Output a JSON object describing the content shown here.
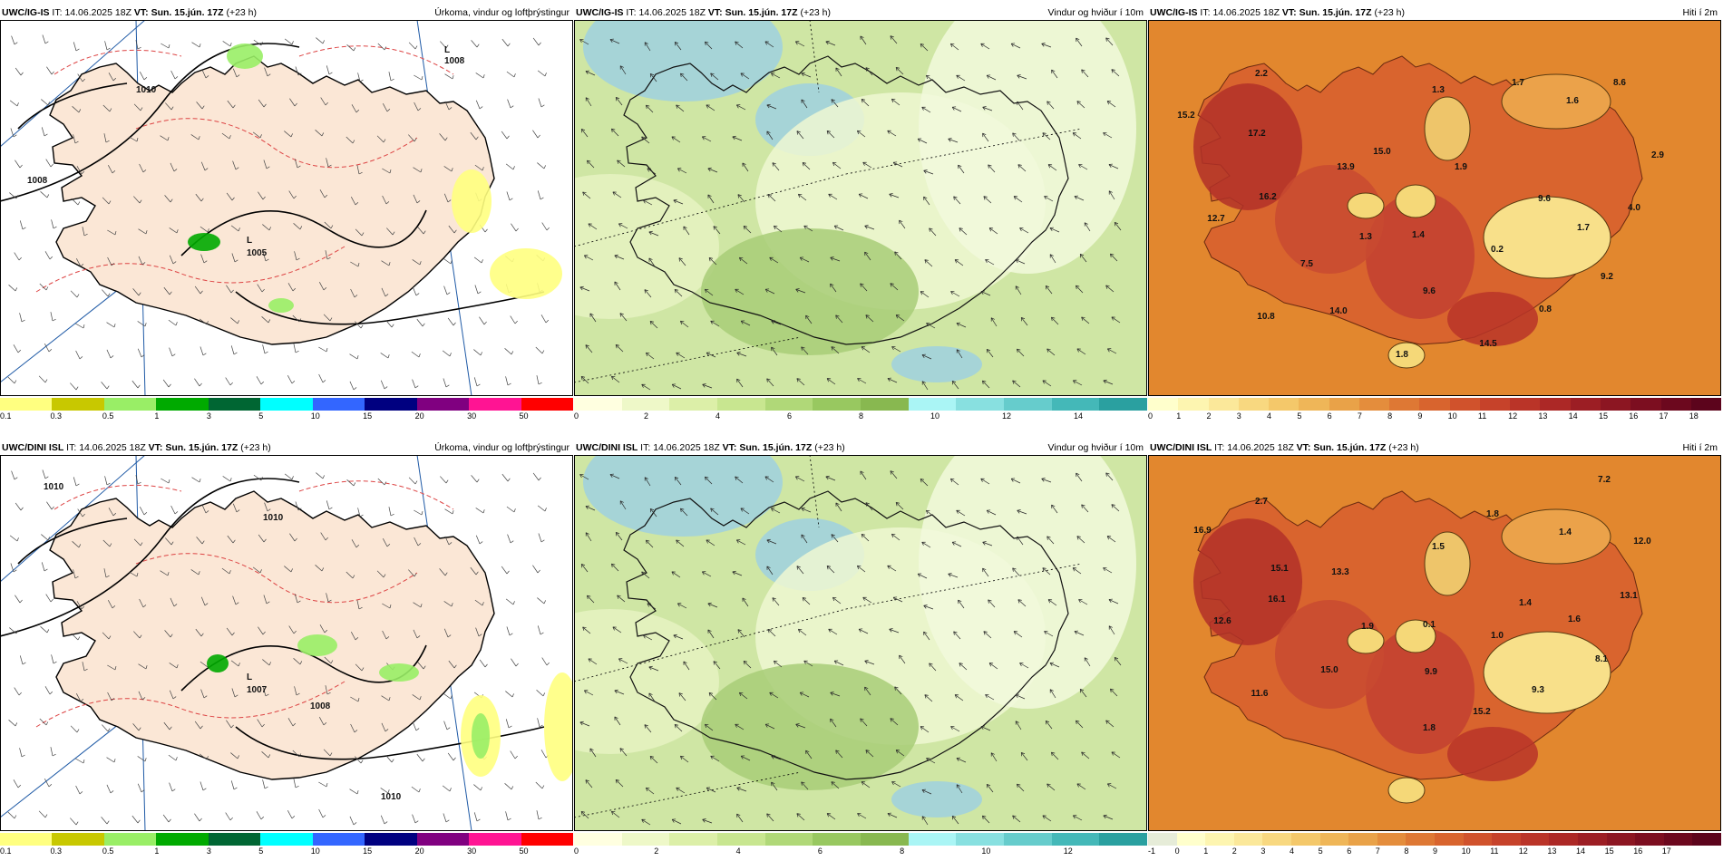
{
  "rows": [
    {
      "model": "UWC/IG-IS",
      "panels": [
        {
          "kind": "precip",
          "model": "UWC/IG-IS",
          "it_label": "IT:",
          "it": "14.06.2025 18Z",
          "vt_label": "VT:",
          "vt": "Sun. 15.jún. 17Z",
          "lead": "(+23 h)",
          "title": "Úrkoma, vindur og loftþrýstingur",
          "isobar_labels": [
            {
              "text": "1008",
              "x": 490,
              "y": 48
            },
            {
              "text": "1005",
              "x": 272,
              "y": 260
            },
            {
              "text": "1010",
              "x": 150,
              "y": 80
            },
            {
              "text": "1008",
              "x": 30,
              "y": 180
            }
          ],
          "low_labels": [
            {
              "text": "L",
              "x": 272,
              "y": 246
            },
            {
              "text": "L",
              "x": 490,
              "y": 36
            }
          ],
          "colorbar": {
            "colors": [
              "#ffff80",
              "#c8c800",
              "#99ee66",
              "#00aa00",
              "#006633",
              "#00ffff",
              "#3366ff",
              "#000080",
              "#800080",
              "#ff1493",
              "#ff0000"
            ],
            "ticks": [
              "0.1",
              "0.3",
              "0.5",
              "1",
              "3",
              "5",
              "10",
              "15",
              "20",
              "30",
              "50"
            ]
          }
        },
        {
          "kind": "wind",
          "model": "UWC/IG-IS",
          "it_label": "IT:",
          "it": "14.06.2025 18Z",
          "vt_label": "VT:",
          "vt": "Sun. 15.jún. 17Z",
          "lead": "(+23 h)",
          "title": "Vindur og hviður í 10m",
          "colorbar": {
            "colors": [
              "#ffffe0",
              "#eef8c8",
              "#dcefa8",
              "#c8e690",
              "#b0d878",
              "#98c860",
              "#88b850",
              "#aaf5f5",
              "#88e0e0",
              "#66cccc",
              "#44b8b8",
              "#2aa0a0"
            ],
            "ticks": [
              "0",
              "2",
              "4",
              "6",
              "8",
              "10",
              "12",
              "14"
            ]
          }
        },
        {
          "kind": "temp",
          "model": "UWC/IG-IS",
          "it_label": "IT:",
          "it": "14.06.2025 18Z",
          "vt_label": "VT:",
          "vt": "Sun. 15.jún. 17Z",
          "lead": "(+23 h)",
          "title": "Hiti í 2m",
          "labels": [
            {
              "text": "2.2",
              "x": 125,
              "y": 62
            },
            {
              "text": "15.2",
              "x": 42,
              "y": 108
            },
            {
              "text": "17.2",
              "x": 120,
              "y": 128
            },
            {
              "text": "13.9",
              "x": 218,
              "y": 165
            },
            {
              "text": "15.0",
              "x": 258,
              "y": 148
            },
            {
              "text": "1.3",
              "x": 320,
              "y": 80
            },
            {
              "text": "1.7",
              "x": 408,
              "y": 72
            },
            {
              "text": "1.6",
              "x": 468,
              "y": 92
            },
            {
              "text": "8.6",
              "x": 520,
              "y": 72
            },
            {
              "text": "1.9",
              "x": 345,
              "y": 165
            },
            {
              "text": "2.9",
              "x": 562,
              "y": 152
            },
            {
              "text": "16.2",
              "x": 132,
              "y": 198
            },
            {
              "text": "9.6",
              "x": 437,
              "y": 200
            },
            {
              "text": "4.0",
              "x": 536,
              "y": 210
            },
            {
              "text": "12.7",
              "x": 75,
              "y": 222
            },
            {
              "text": "1.4",
              "x": 298,
              "y": 240
            },
            {
              "text": "1.3",
              "x": 240,
              "y": 242
            },
            {
              "text": "0.2",
              "x": 385,
              "y": 256
            },
            {
              "text": "1.7",
              "x": 480,
              "y": 232
            },
            {
              "text": "7.5",
              "x": 175,
              "y": 272
            },
            {
              "text": "9.2",
              "x": 506,
              "y": 286
            },
            {
              "text": "9.6",
              "x": 310,
              "y": 302
            },
            {
              "text": "0.8",
              "x": 438,
              "y": 322
            },
            {
              "text": "14.0",
              "x": 210,
              "y": 324
            },
            {
              "text": "10.8",
              "x": 130,
              "y": 330
            },
            {
              "text": "14.5",
              "x": 375,
              "y": 360
            },
            {
              "text": "1.8",
              "x": 280,
              "y": 372
            }
          ],
          "colorbar": {
            "colors": [
              "#ffffcc",
              "#fdf5b0",
              "#fbe89a",
              "#f8d880",
              "#f4c86a",
              "#efb658",
              "#e9a248",
              "#e48d3c",
              "#de7834",
              "#d8642e",
              "#d0522c",
              "#c6422a",
              "#ba3428",
              "#ac2826",
              "#9c1e24",
              "#8c1622",
              "#7c0e20",
              "#6c081e",
              "#5c041c"
            ],
            "ticks": [
              "0",
              "1",
              "2",
              "3",
              "4",
              "5",
              "6",
              "7",
              "8",
              "9",
              "10",
              "11",
              "12",
              "13",
              "14",
              "15",
              "16",
              "17",
              "18"
            ]
          }
        }
      ]
    },
    {
      "model": "UWC/DINI ISL",
      "panels": [
        {
          "kind": "precip",
          "model": "UWC/DINI ISL",
          "it_label": "IT:",
          "it": "14.06.2025 18Z",
          "vt_label": "VT:",
          "vt": "Sun. 15.jún. 17Z",
          "lead": "(+23 h)",
          "title": "Úrkoma, vindur og loftþrýstingur",
          "isobar_labels": [
            {
              "text": "1010",
              "x": 48,
              "y": 38
            },
            {
              "text": "1010",
              "x": 290,
              "y": 72
            },
            {
              "text": "1007",
              "x": 272,
              "y": 262
            },
            {
              "text": "1008",
              "x": 342,
              "y": 280
            },
            {
              "text": "1010",
              "x": 420,
              "y": 380
            }
          ],
          "low_labels": [
            {
              "text": "L",
              "x": 272,
              "y": 248
            }
          ],
          "colorbar": {
            "colors": [
              "#ffff80",
              "#c8c800",
              "#99ee66",
              "#00aa00",
              "#006633",
              "#00ffff",
              "#3366ff",
              "#000080",
              "#800080",
              "#ff1493",
              "#ff0000"
            ],
            "ticks": [
              "0.1",
              "0.3",
              "0.5",
              "1",
              "3",
              "5",
              "10",
              "15",
              "20",
              "30",
              "50"
            ]
          }
        },
        {
          "kind": "wind",
          "model": "UWC/DINI ISL",
          "it_label": "IT:",
          "it": "14.06.2025 18Z",
          "vt_label": "VT:",
          "vt": "Sun. 15.jún. 17Z",
          "lead": "(+23 h)",
          "title": "Vindur og hviður í 10m",
          "colorbar": {
            "colors": [
              "#ffffe0",
              "#eef8c8",
              "#dcefa8",
              "#c8e690",
              "#b0d878",
              "#98c860",
              "#88b850",
              "#aaf5f5",
              "#88e0e0",
              "#66cccc",
              "#44b8b8",
              "#2aa0a0"
            ],
            "ticks": [
              "0",
              "2",
              "4",
              "6",
              "8",
              "10",
              "12"
            ]
          }
        },
        {
          "kind": "temp",
          "model": "UWC/DINI ISL",
          "it_label": "IT:",
          "it": "14.06.2025 18Z",
          "vt_label": "VT:",
          "vt": "Sun. 15.jún. 17Z",
          "lead": "(+23 h)",
          "title": "Hiti í 2m",
          "labels": [
            {
              "text": "7.2",
              "x": 503,
              "y": 30
            },
            {
              "text": "2.7",
              "x": 125,
              "y": 54
            },
            {
              "text": "1.8",
              "x": 380,
              "y": 68
            },
            {
              "text": "16.9",
              "x": 60,
              "y": 86
            },
            {
              "text": "1.4",
              "x": 460,
              "y": 88
            },
            {
              "text": "12.0",
              "x": 545,
              "y": 98
            },
            {
              "text": "1.5",
              "x": 320,
              "y": 104
            },
            {
              "text": "15.1",
              "x": 145,
              "y": 128
            },
            {
              "text": "13.3",
              "x": 212,
              "y": 132
            },
            {
              "text": "16.1",
              "x": 142,
              "y": 162
            },
            {
              "text": "13.1",
              "x": 530,
              "y": 158
            },
            {
              "text": "1.4",
              "x": 416,
              "y": 166
            },
            {
              "text": "12.6",
              "x": 82,
              "y": 186
            },
            {
              "text": "1.6",
              "x": 470,
              "y": 184
            },
            {
              "text": "1.9",
              "x": 242,
              "y": 192
            },
            {
              "text": "0.1",
              "x": 310,
              "y": 190
            },
            {
              "text": "1.0",
              "x": 385,
              "y": 202
            },
            {
              "text": "8.1",
              "x": 500,
              "y": 228
            },
            {
              "text": "15.0",
              "x": 200,
              "y": 240
            },
            {
              "text": "9.9",
              "x": 312,
              "y": 242
            },
            {
              "text": "9.3",
              "x": 430,
              "y": 262
            },
            {
              "text": "11.6",
              "x": 123,
              "y": 266
            },
            {
              "text": "15.2",
              "x": 368,
              "y": 286
            },
            {
              "text": "1.8",
              "x": 310,
              "y": 304
            }
          ],
          "colorbar": {
            "colors": [
              "#e6ecd8",
              "#ffffcc",
              "#fdf5b0",
              "#fbe89a",
              "#f8d880",
              "#f4c86a",
              "#efb658",
              "#e9a248",
              "#e48d3c",
              "#de7834",
              "#d8642e",
              "#d0522c",
              "#c6422a",
              "#ba3428",
              "#ac2826",
              "#9c1e24",
              "#8c1622",
              "#7c0e20",
              "#6c081e",
              "#5c041c"
            ],
            "ticks": [
              "-1",
              "0",
              "1",
              "2",
              "3",
              "4",
              "5",
              "6",
              "7",
              "8",
              "9",
              "10",
              "11",
              "12",
              "13",
              "14",
              "15",
              "16",
              "17"
            ]
          }
        }
      ]
    }
  ]
}
